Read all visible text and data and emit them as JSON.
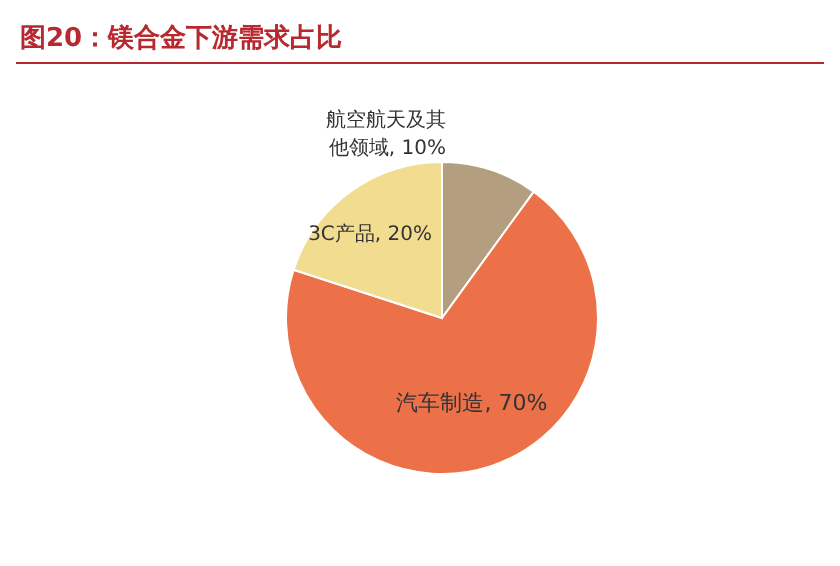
{
  "chart_data": {
    "type": "pie",
    "title": "图20：镁合金下游需求占比",
    "categories": [
      "航空航天及其他领域",
      "汽车制造",
      "3C产品"
    ],
    "values": [
      10,
      70,
      20
    ],
    "colors": [
      "#b39e7f",
      "#ec7149",
      "#f2dc8f"
    ],
    "value_labels": [
      "10%",
      "70%",
      "20%"
    ]
  }
}
